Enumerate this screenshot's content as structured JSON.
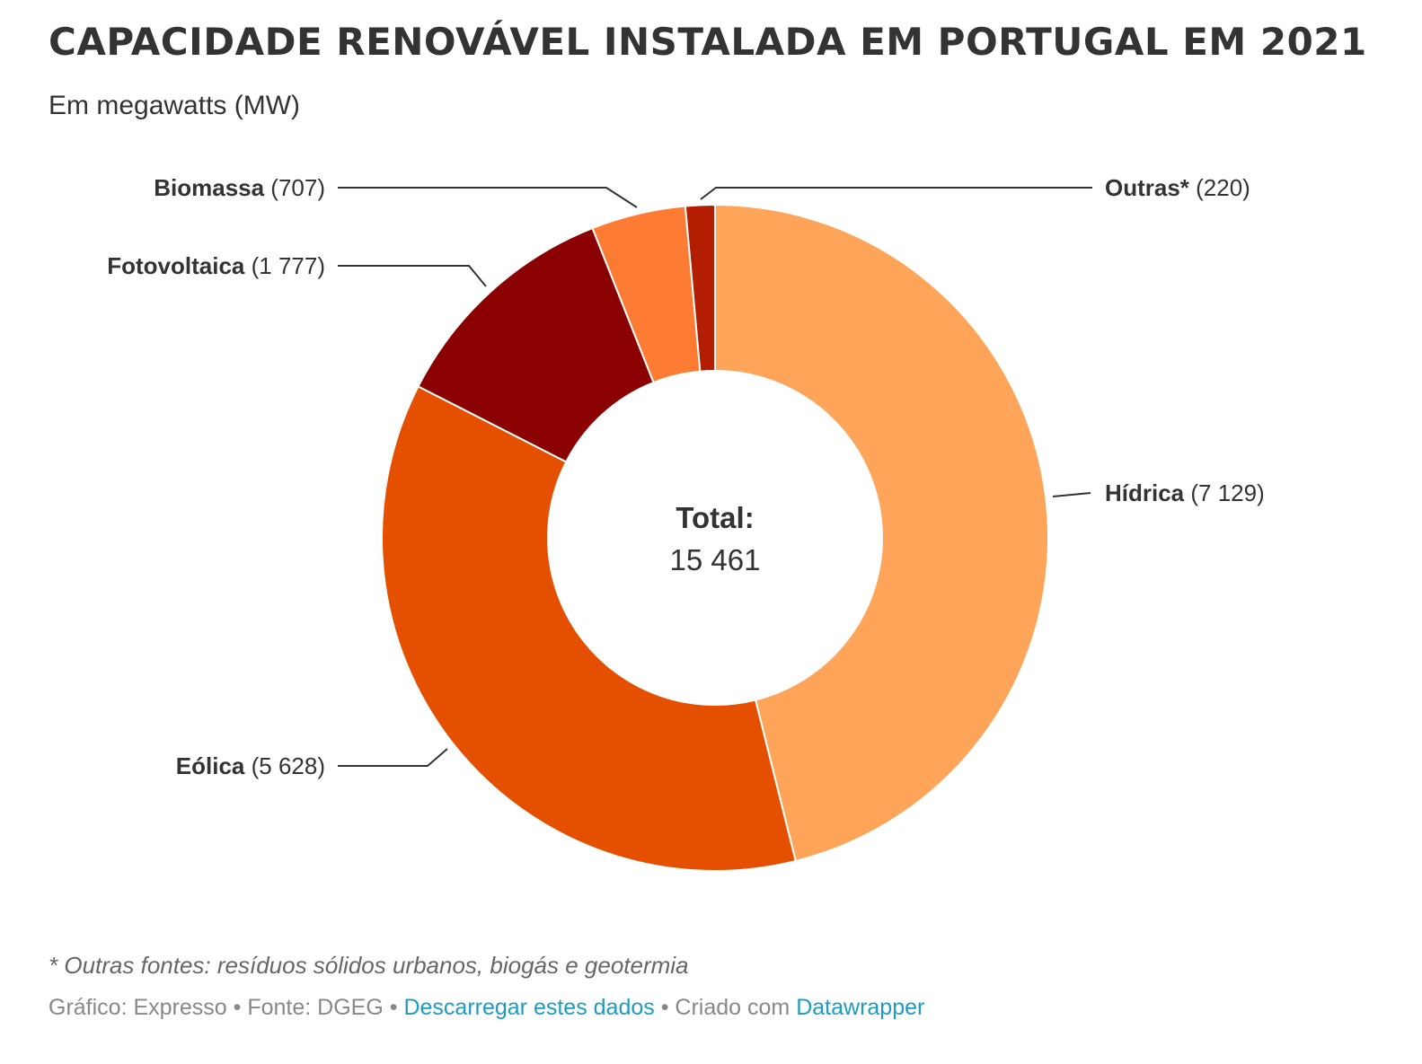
{
  "header": {
    "title": "CAPACIDADE RENOVÁVEL INSTALADA EM PORTUGAL EM 2021",
    "subtitle": "Em megawatts (MW)"
  },
  "chart_data": {
    "type": "pie",
    "variant": "donut",
    "unit": "MW",
    "slices": [
      {
        "label": "Hídrica",
        "value": 7129,
        "display": "7 129",
        "color": "#fea55a"
      },
      {
        "label": "Eólica",
        "value": 5628,
        "display": "5 628",
        "color": "#e55000"
      },
      {
        "label": "Fotovoltaica",
        "value": 1777,
        "display": "1 777",
        "color": "#8b0000"
      },
      {
        "label": "Biomassa",
        "value": 707,
        "display": "707",
        "color": "#fe7b33"
      },
      {
        "label": "Outras*",
        "value": 220,
        "display": "220",
        "color": "#b31d00"
      }
    ],
    "center": {
      "label": "Total:",
      "value": "15 461"
    }
  },
  "footer": {
    "note": "* Outras fontes: resíduos sólidos urbanos, biogás e geotermia",
    "credit_chart": "Gráfico: Expresso",
    "sep": " • ",
    "credit_source": "Fonte: DGEG",
    "download_link": "Descarregar estes dados",
    "created_with": "Criado com",
    "tool_link": "Datawrapper"
  }
}
